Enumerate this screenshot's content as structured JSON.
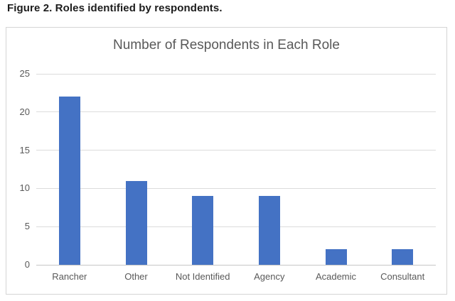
{
  "figure_caption": "Figure 2. Roles identified by respondents.",
  "chart_data": {
    "type": "bar",
    "title": "Number of Respondents in Each Role",
    "categories": [
      "Rancher",
      "Other",
      "Not Identified",
      "Agency",
      "Academic",
      "Consultant"
    ],
    "values": [
      22,
      11,
      9,
      9,
      2,
      2
    ],
    "xlabel": "",
    "ylabel": "",
    "ylim": [
      0,
      25
    ],
    "yticks": [
      0,
      5,
      10,
      15,
      20,
      25
    ],
    "grid": true,
    "legend": "none",
    "colors": {
      "bar": "#4472c4",
      "title_text": "#595959",
      "tick_text": "#595959",
      "gridline": "#dcdcdc",
      "axis_line": "#c6c6c6",
      "chart_border": "#d5d5d5",
      "caption_text": "#1c1c1c"
    }
  }
}
